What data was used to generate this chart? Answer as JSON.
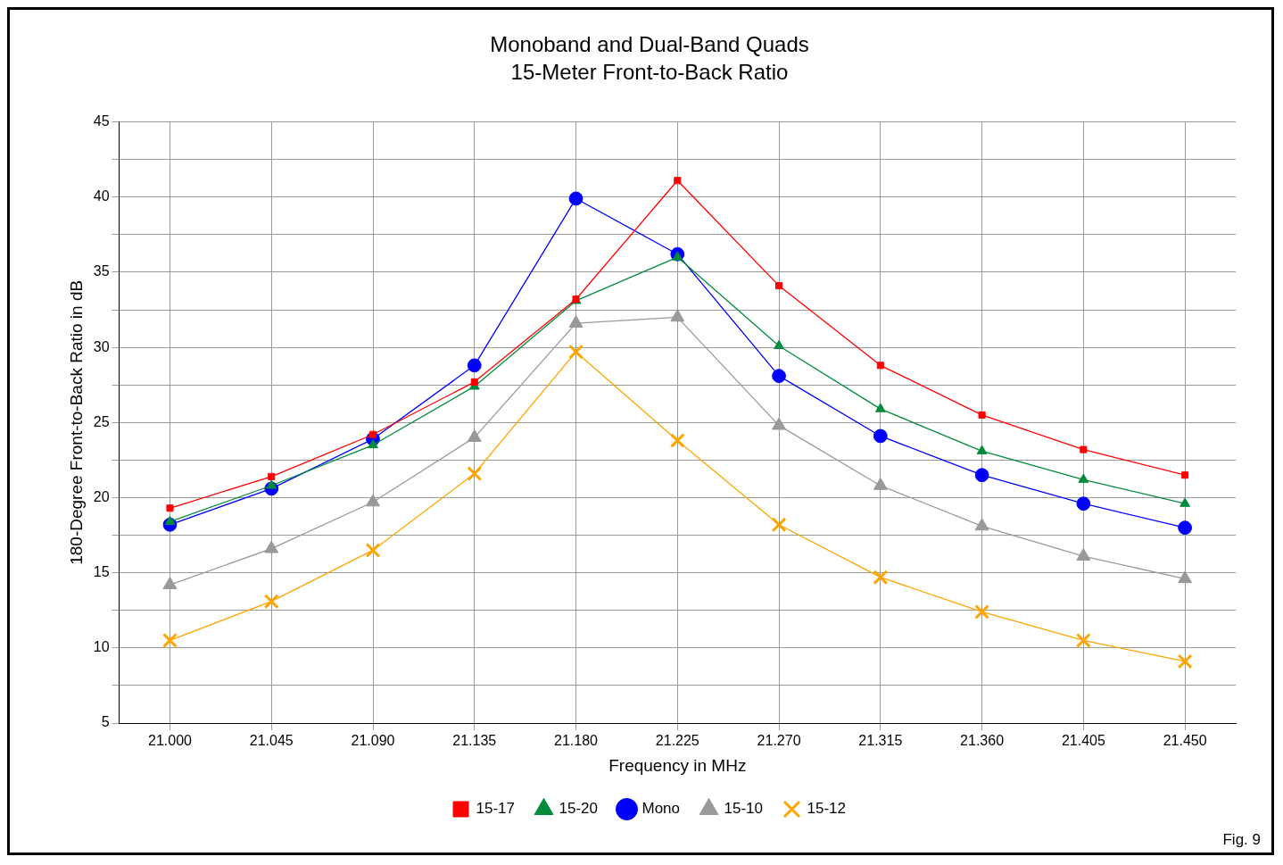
{
  "chart_data": {
    "type": "line",
    "title": "Monoband and Dual-Band Quads",
    "subtitle": "15-Meter Front-to-Back Ratio",
    "xlabel": "Frequency in MHz",
    "ylabel": "180-Degree Front-to-Back Ratio in dB",
    "x": [
      21.0,
      21.045,
      21.09,
      21.135,
      21.18,
      21.225,
      21.27,
      21.315,
      21.36,
      21.405,
      21.45
    ],
    "xlim": [
      20.9775,
      21.4725
    ],
    "xticks": [
      {
        "value": 21.0,
        "label": "21.000"
      },
      {
        "value": 21.045,
        "label": "21.045"
      },
      {
        "value": 21.09,
        "label": "21.090"
      },
      {
        "value": 21.135,
        "label": "21.135"
      },
      {
        "value": 21.18,
        "label": "21.180"
      },
      {
        "value": 21.225,
        "label": "21.225"
      },
      {
        "value": 21.27,
        "label": "21.270"
      },
      {
        "value": 21.315,
        "label": "21.315"
      },
      {
        "value": 21.36,
        "label": "21.360"
      },
      {
        "value": 21.405,
        "label": "21.405"
      },
      {
        "value": 21.45,
        "label": "21.450"
      }
    ],
    "ylim": [
      5,
      45
    ],
    "yticks": [
      5,
      {
        "value": 7.5,
        "label": null
      },
      10,
      {
        "value": 12.5,
        "label": null
      },
      15,
      {
        "value": 17.5,
        "label": null
      },
      20,
      {
        "value": 22.5,
        "label": null
      },
      25,
      {
        "value": 27.5,
        "label": null
      },
      30,
      {
        "value": 32.5,
        "label": null
      },
      35,
      {
        "value": 37.5,
        "label": null
      },
      40,
      {
        "value": 42.5,
        "label": null
      },
      45
    ],
    "grid": true,
    "legend": "bottom",
    "line_style": "solid",
    "series": [
      {
        "name": "15-17",
        "color": "#ff0000",
        "marker": "square",
        "values": [
          19.3,
          21.4,
          24.2,
          27.7,
          33.2,
          41.1,
          34.1,
          28.8,
          25.5,
          23.2,
          21.5
        ]
      },
      {
        "name": "15-20",
        "color": "#008c3c",
        "marker": "triangle",
        "values": [
          18.4,
          20.8,
          23.5,
          27.4,
          33.1,
          36.0,
          30.1,
          25.9,
          23.1,
          21.2,
          19.6
        ]
      },
      {
        "name": "Mono",
        "color": "#0000ff",
        "marker": "circle",
        "values": [
          18.2,
          20.6,
          23.9,
          28.8,
          39.9,
          36.2,
          28.1,
          24.1,
          21.5,
          19.6,
          18.0
        ]
      },
      {
        "name": "15-10",
        "color": "#999999",
        "marker": "triangle",
        "values": [
          14.2,
          16.6,
          19.7,
          24.0,
          31.6,
          32.0,
          24.8,
          20.8,
          18.1,
          16.1,
          14.6
        ]
      },
      {
        "name": "15-12",
        "color": "#ffa500",
        "marker": "cross",
        "values": [
          10.5,
          13.1,
          16.5,
          21.6,
          29.7,
          23.8,
          18.2,
          14.7,
          12.4,
          10.5,
          9.1
        ]
      }
    ],
    "annotations": [
      "Fig. 9"
    ]
  }
}
